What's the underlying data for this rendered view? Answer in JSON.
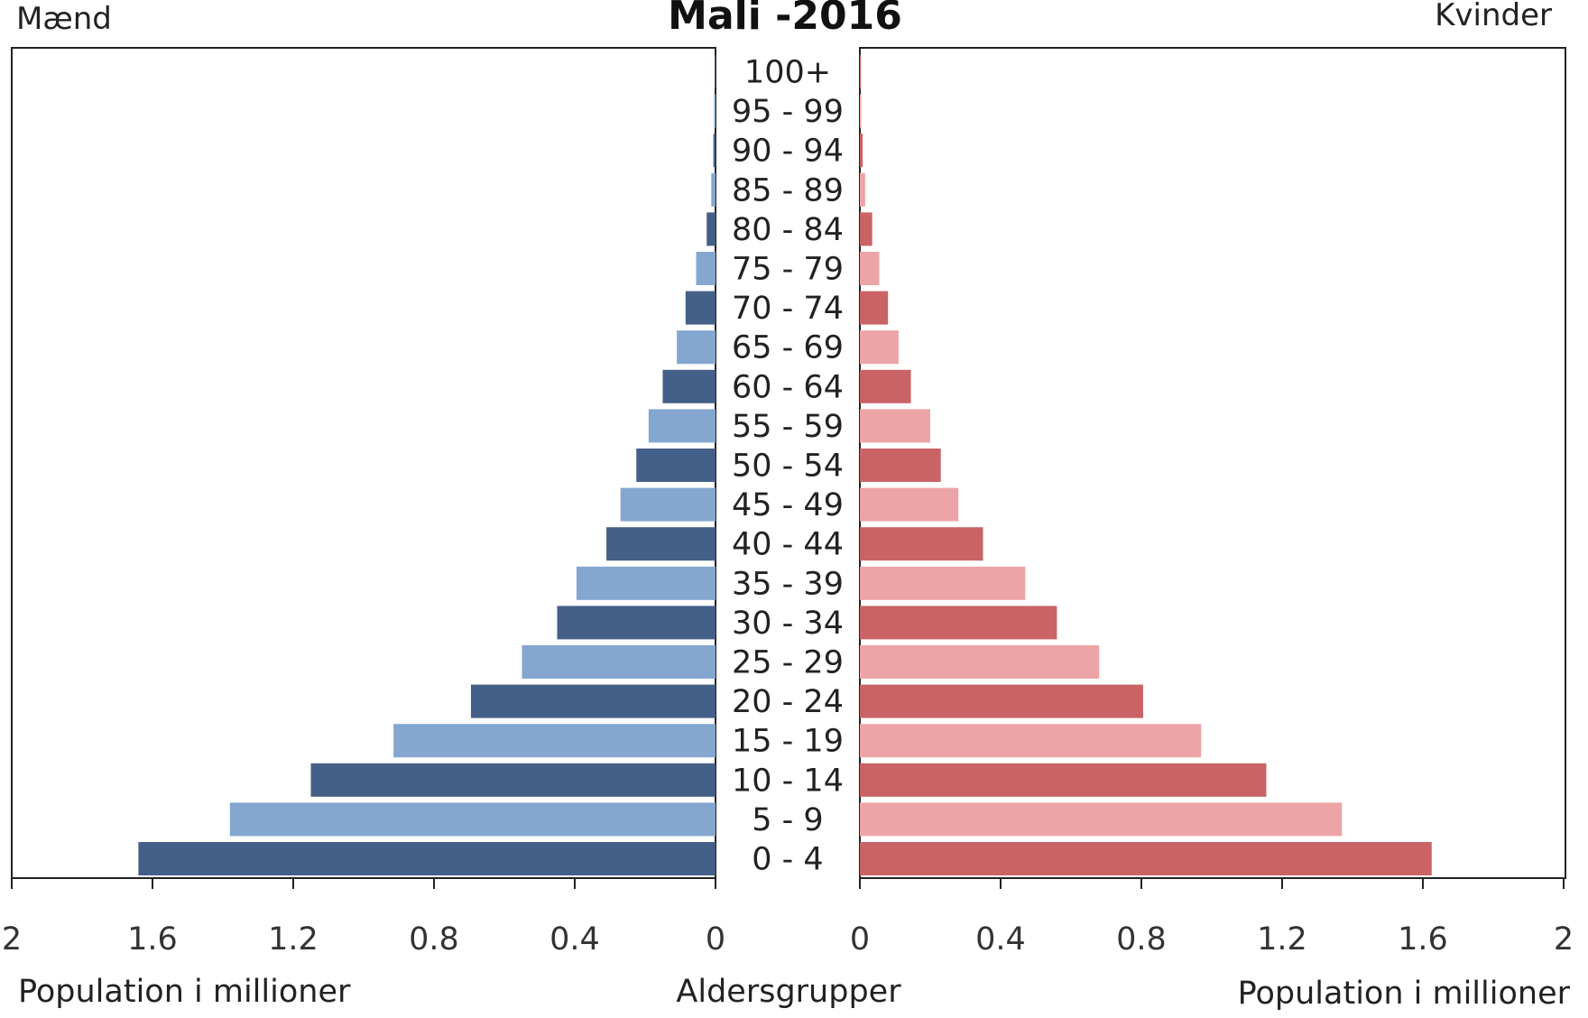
{
  "chart_data": {
    "type": "bar",
    "title": "Mali -2016",
    "left_label": "Mænd",
    "right_label": "Kvinder",
    "xlabel_left": "Population i millioner",
    "xlabel_right": "Population i millioner",
    "center_label": "Aldersgrupper",
    "xlim": [
      0,
      2
    ],
    "xticks": [
      "2",
      "1.6",
      "1.2",
      "0.8",
      "0.4",
      "0"
    ],
    "xticks_right": [
      "0",
      "0.4",
      "0.8",
      "1.2",
      "1.6",
      "2"
    ],
    "categories": [
      "100+",
      "95 - 99",
      "90 - 94",
      "85 - 89",
      "80 - 84",
      "75 - 79",
      "70 - 74",
      "65 - 69",
      "60 - 64",
      "55 - 59",
      "50 - 54",
      "45 - 49",
      "40 - 44",
      "35 - 39",
      "30 - 34",
      "25 - 29",
      "20 - 24",
      "15 - 19",
      "10 - 14",
      "5 - 9",
      "0 - 4"
    ],
    "series": [
      {
        "name": "Mænd",
        "side": "left",
        "values": [
          0.002,
          0.004,
          0.006,
          0.012,
          0.025,
          0.055,
          0.085,
          0.11,
          0.15,
          0.19,
          0.225,
          0.27,
          0.31,
          0.395,
          0.45,
          0.55,
          0.695,
          0.915,
          1.15,
          1.38,
          1.64
        ]
      },
      {
        "name": "Kvinder",
        "side": "right",
        "values": [
          0.003,
          0.004,
          0.008,
          0.015,
          0.035,
          0.055,
          0.08,
          0.11,
          0.145,
          0.2,
          0.23,
          0.28,
          0.35,
          0.47,
          0.56,
          0.68,
          0.805,
          0.97,
          1.155,
          1.37,
          1.625
        ]
      }
    ],
    "colors": {
      "male_dark": "#445f88",
      "male_light": "#84a7cf",
      "female_dark": "#c96366",
      "female_light": "#eda4a7"
    },
    "grid": false
  }
}
